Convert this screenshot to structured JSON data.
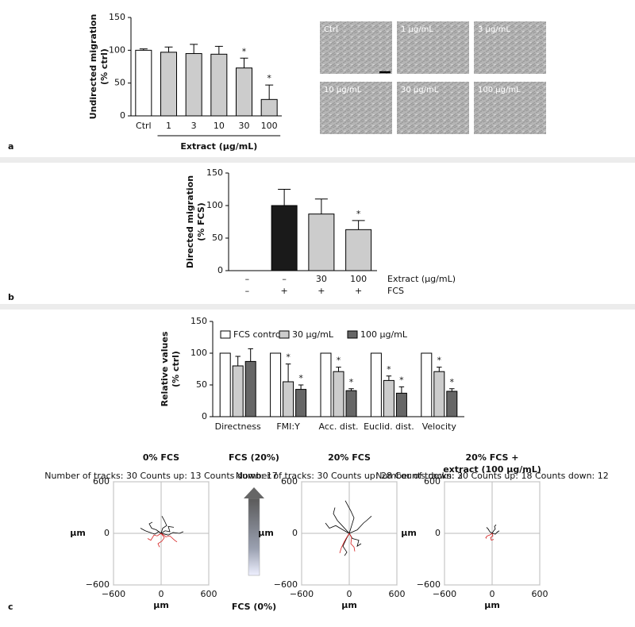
{
  "panel_labels": [
    "a",
    "b",
    "c"
  ],
  "micrographs": {
    "labels": [
      "Ctrl",
      "1 μg/mL",
      "3 μg/mL",
      "10 μg/mL",
      "30 μg/mL",
      "100 μg/mL"
    ]
  },
  "gradient": {
    "top": "FCS (20%)",
    "bottom": "FCS (0%)"
  },
  "chart_data": [
    {
      "type": "bar",
      "ylabel": [
        "Undirected migration",
        "(% ctrl)"
      ],
      "xlabel": "Extract (μg/mL)",
      "categories": [
        "Ctrl",
        "1",
        "3",
        "10",
        "30",
        "100"
      ],
      "values": [
        100,
        97,
        95,
        94,
        73,
        25
      ],
      "errors": [
        2,
        8,
        14,
        12,
        15,
        22
      ],
      "colors": [
        "#ffffff",
        "#cccccc",
        "#cccccc",
        "#cccccc",
        "#cccccc",
        "#cccccc"
      ],
      "annotations": [
        null,
        null,
        null,
        null,
        "*",
        "*"
      ],
      "ylim": [
        0,
        150
      ],
      "yticks": [
        0,
        50,
        100,
        150
      ]
    },
    {
      "type": "bar",
      "ylabel": [
        "Directed migration",
        "(% FCS)"
      ],
      "values": [
        0,
        100,
        87,
        63
      ],
      "errors": [
        0,
        25,
        23,
        14
      ],
      "colors": [
        "#cccccc",
        "#1a1a1a",
        "#cccccc",
        "#cccccc"
      ],
      "annotations": [
        null,
        null,
        null,
        "*"
      ],
      "rows": [
        {
          "label": "Extract (μg/mL)",
          "cells": [
            "–",
            "–",
            "30",
            "100"
          ]
        },
        {
          "label": "FCS",
          "cells": [
            "–",
            "+",
            "+",
            "+"
          ]
        }
      ],
      "ylim": [
        0,
        150
      ],
      "yticks": [
        0,
        50,
        100,
        150
      ]
    },
    {
      "type": "bar",
      "ylabel": [
        "Relative values",
        "(% ctrl)"
      ],
      "categories": [
        "Directness",
        "FMI:Y",
        "Acc. dist.",
        "Euclid. dist.",
        "Velocity"
      ],
      "series": [
        {
          "name": "FCS control",
          "color": "#ffffff",
          "values": [
            100,
            100,
            100,
            100,
            100
          ],
          "errors": [
            0,
            0,
            0,
            0,
            0
          ],
          "annotations": [
            null,
            null,
            null,
            null,
            null
          ]
        },
        {
          "name": "30 μg/mL",
          "color": "#cccccc",
          "values": [
            80,
            55,
            71,
            57,
            71
          ],
          "errors": [
            15,
            28,
            7,
            7,
            7
          ],
          "annotations": [
            null,
            "*",
            "*",
            "*",
            "*"
          ]
        },
        {
          "name": "100 μg/mL",
          "color": "#666666",
          "values": [
            87,
            43,
            41,
            37,
            40
          ],
          "errors": [
            20,
            7,
            3,
            10,
            4
          ],
          "annotations": [
            null,
            "*",
            "*",
            "*",
            "*"
          ]
        }
      ],
      "legend": "top",
      "ylim": [
        0,
        150
      ],
      "yticks": [
        0,
        50,
        100,
        150
      ]
    },
    {
      "type": "trajectory",
      "title": [
        "0% FCS"
      ],
      "subtitle": "Number of tracks: 30 Counts up: 13 Counts down: 17",
      "xlabel": "μm",
      "ylabel": "μm",
      "xlim": [
        -600,
        600
      ],
      "ylim": [
        -600,
        600
      ],
      "xticks": [
        {
          "value": -600,
          "label": "−600"
        },
        0,
        600
      ],
      "yticks": [
        {
          "value": -600,
          "label": "−600"
        },
        0,
        600
      ],
      "grid": true,
      "tracks": [
        {
          "color": "#000000",
          "x": [
            0,
            -60,
            -120,
            -150,
            -110
          ],
          "y": [
            0,
            40,
            60,
            110,
            130
          ]
        },
        {
          "color": "#000000",
          "x": [
            0,
            50,
            110,
            90,
            160
          ],
          "y": [
            0,
            30,
            20,
            80,
            70
          ]
        },
        {
          "color": "#000000",
          "x": [
            0,
            -30,
            -80,
            -200,
            -260
          ],
          "y": [
            0,
            20,
            -10,
            30,
            60
          ]
        },
        {
          "color": "#000000",
          "x": [
            0,
            20,
            70,
            40,
            10
          ],
          "y": [
            0,
            60,
            90,
            150,
            200
          ]
        },
        {
          "color": "#000000",
          "x": [
            0,
            90,
            150,
            230,
            280
          ],
          "y": [
            0,
            -20,
            10,
            0,
            20
          ]
        },
        {
          "color": "#d62020",
          "x": [
            0,
            40,
            10,
            -40,
            -20
          ],
          "y": [
            0,
            -50,
            -90,
            -120,
            -160
          ]
        },
        {
          "color": "#d62020",
          "x": [
            0,
            -50,
            -90,
            -130,
            -170
          ],
          "y": [
            0,
            -30,
            -20,
            -80,
            -60
          ]
        },
        {
          "color": "#d62020",
          "x": [
            0,
            60,
            110,
            170,
            200
          ],
          "y": [
            0,
            -40,
            -30,
            -80,
            -100
          ]
        }
      ]
    },
    {
      "type": "trajectory",
      "title": [
        "20% FCS"
      ],
      "subtitle": "Number of tracks: 30 Counts up: 28 Counts down: 2",
      "xlabel": "μm",
      "ylabel": "μm",
      "xlim": [
        -600,
        600
      ],
      "ylim": [
        -600,
        600
      ],
      "xticks": [
        {
          "value": -600,
          "label": "−600"
        },
        0,
        600
      ],
      "yticks": [
        {
          "value": -600,
          "label": "−600"
        },
        0,
        600
      ],
      "grid": true,
      "tracks": [
        {
          "color": "#000000",
          "x": [
            0,
            -80,
            -150,
            -200,
            -180
          ],
          "y": [
            0,
            80,
            150,
            230,
            300
          ]
        },
        {
          "color": "#000000",
          "x": [
            0,
            30,
            60,
            20,
            -50
          ],
          "y": [
            0,
            90,
            180,
            260,
            380
          ]
        },
        {
          "color": "#000000",
          "x": [
            0,
            100,
            180,
            220,
            280
          ],
          "y": [
            0,
            40,
            120,
            150,
            200
          ]
        },
        {
          "color": "#000000",
          "x": [
            0,
            -60,
            -170,
            -250,
            -300
          ],
          "y": [
            0,
            30,
            90,
            60,
            120
          ]
        },
        {
          "color": "#000000",
          "x": [
            0,
            40,
            120,
            100,
            150
          ],
          "y": [
            0,
            -60,
            -80,
            -150,
            -120
          ]
        },
        {
          "color": "#000000",
          "x": [
            0,
            -40,
            -80,
            -30,
            -60
          ],
          "y": [
            0,
            -70,
            -150,
            -220,
            -260
          ]
        },
        {
          "color": "#d62020",
          "x": [
            0,
            -40,
            -70,
            -100,
            -120
          ],
          "y": [
            0,
            -60,
            -110,
            -170,
            -230
          ]
        },
        {
          "color": "#d62020",
          "x": [
            0,
            30,
            20,
            60,
            70
          ],
          "y": [
            0,
            -50,
            -120,
            -160,
            -210
          ]
        }
      ]
    },
    {
      "type": "trajectory",
      "title": [
        "20% FCS +",
        "extract (100 μg/mL)"
      ],
      "subtitle": "Number of tracks: 30 Counts up: 18 Counts down: 12",
      "xlabel": "μm",
      "ylabel": "μm",
      "xlim": [
        -600,
        600
      ],
      "ylim": [
        -600,
        600
      ],
      "xticks": [
        {
          "value": -600,
          "label": "−600"
        },
        0,
        600
      ],
      "yticks": [
        {
          "value": -600,
          "label": "−600"
        },
        0,
        600
      ],
      "grid": true,
      "tracks": [
        {
          "color": "#000000",
          "x": [
            0,
            20,
            40,
            30,
            50
          ],
          "y": [
            0,
            30,
            50,
            80,
            100
          ]
        },
        {
          "color": "#000000",
          "x": [
            0,
            -30,
            -50,
            -40,
            -70
          ],
          "y": [
            0,
            20,
            50,
            40,
            70
          ]
        },
        {
          "color": "#000000",
          "x": [
            0,
            40,
            70,
            60,
            90
          ],
          "y": [
            0,
            -10,
            20,
            10,
            30
          ]
        },
        {
          "color": "#d62020",
          "x": [
            0,
            -30,
            -60,
            -80,
            -70
          ],
          "y": [
            0,
            -20,
            -30,
            -50,
            -60
          ]
        },
        {
          "color": "#d62020",
          "x": [
            0,
            10,
            -20,
            -10,
            20
          ],
          "y": [
            0,
            -30,
            -50,
            -80,
            -70
          ]
        }
      ]
    }
  ]
}
